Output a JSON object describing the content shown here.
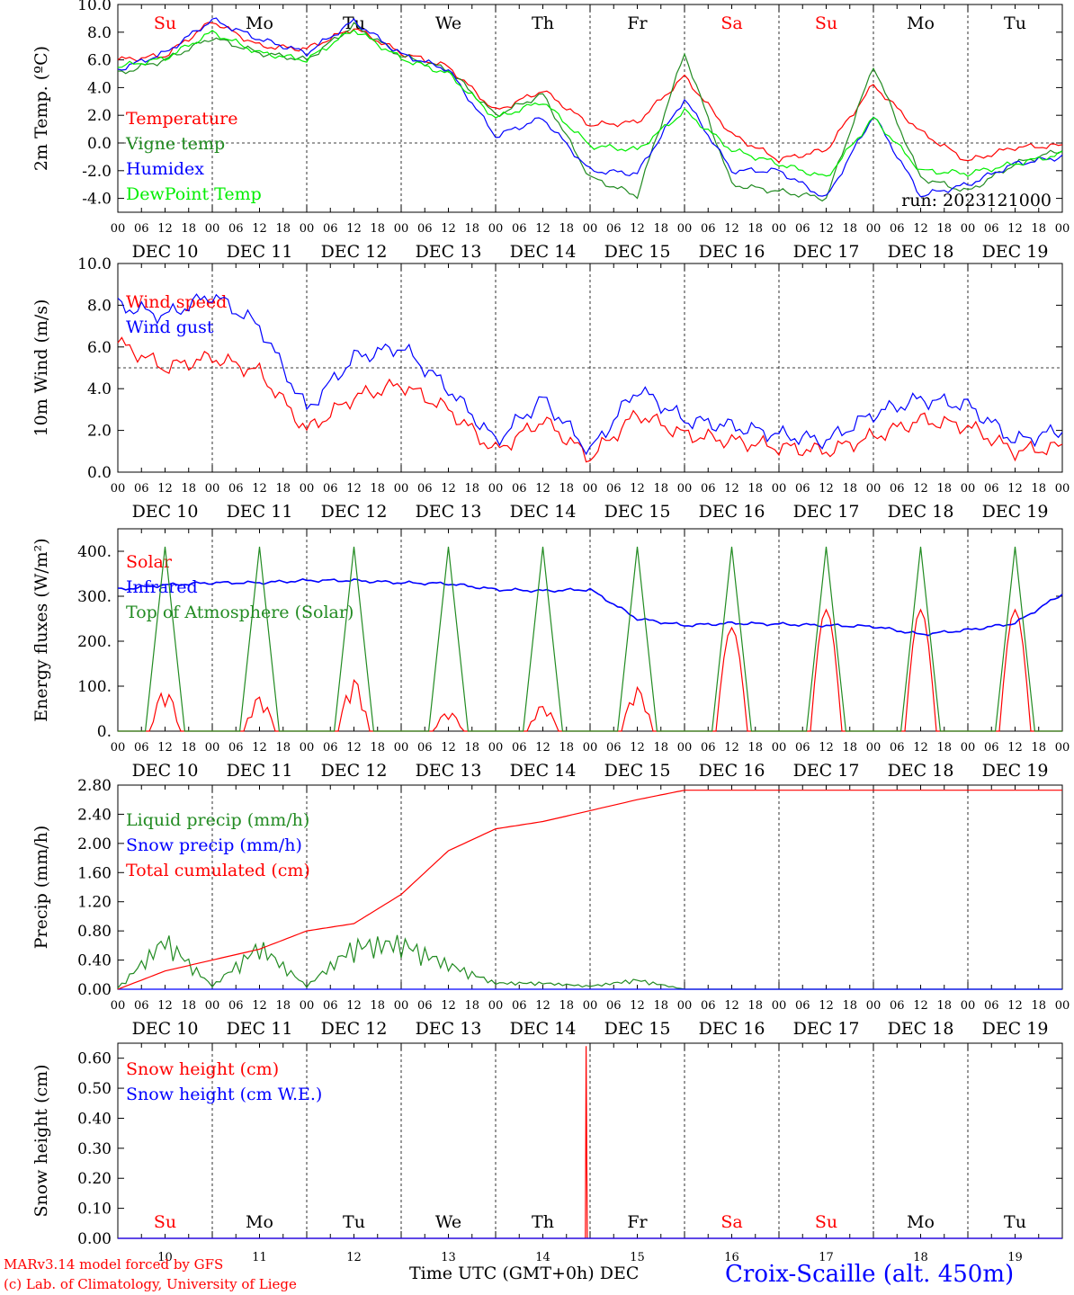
{
  "chart_data": [
    {
      "type": "line",
      "ylabel": "2m Temp. (ºC)",
      "ylim": [
        -5,
        10
      ],
      "yticks": [
        "10.0",
        "8.0",
        "6.0",
        "4.0",
        "2.0",
        "0.0",
        "-2.0",
        "-4.0"
      ],
      "ref_line": 0,
      "x_hours": [
        0,
        12,
        24,
        36,
        48,
        60,
        72,
        84,
        96,
        108,
        120,
        132,
        144,
        156,
        168,
        180,
        192,
        204,
        216,
        228,
        240
      ],
      "series": [
        {
          "name": "Temperature",
          "color": "#ff0000",
          "values": [
            6.0,
            6.3,
            8.8,
            7.0,
            6.8,
            8.3,
            6.5,
            5.5,
            2.3,
            3.8,
            1.3,
            1.5,
            4.8,
            0.6,
            -1.2,
            -0.5,
            4.2,
            0.8,
            -1.3,
            -0.3,
            -0.2
          ]
        },
        {
          "name": "Vigne temp",
          "color": "#228b22",
          "values": [
            5.0,
            6.0,
            7.6,
            6.5,
            6.0,
            8.5,
            6.3,
            5.3,
            2.0,
            3.5,
            -2.5,
            -3.8,
            6.5,
            -3.0,
            -3.5,
            -4.0,
            5.6,
            -2.5,
            -3.5,
            -1.5,
            -0.5
          ]
        },
        {
          "name": "Humidex",
          "color": "#0000ff",
          "values": [
            5.3,
            6.5,
            8.9,
            7.5,
            6.5,
            8.8,
            6.4,
            5.3,
            0.5,
            1.8,
            -2.0,
            -2.2,
            3.2,
            -2.0,
            -2.0,
            -4.0,
            2.0,
            -3.8,
            -3.0,
            -1.5,
            -1.0
          ]
        },
        {
          "name": "DewPoint Temp",
          "color": "#00ee00",
          "values": [
            5.5,
            6.1,
            8.0,
            6.5,
            6.0,
            8.2,
            6.1,
            5.0,
            1.8,
            3.0,
            -0.2,
            -0.5,
            2.3,
            -0.5,
            -1.5,
            -2.5,
            1.8,
            -2.0,
            -2.2,
            -1.5,
            -0.8
          ]
        }
      ],
      "run_label": "run: 2023121000"
    },
    {
      "type": "line",
      "ylabel": "10m Wind (m/s)",
      "ylim": [
        0,
        10
      ],
      "yticks": [
        "10.0",
        "8.0",
        "6.0",
        "4.0",
        "2.0",
        "0.0"
      ],
      "ref_line": 5,
      "x_hours": [
        0,
        12,
        24,
        36,
        48,
        60,
        72,
        84,
        96,
        108,
        120,
        132,
        144,
        156,
        168,
        180,
        192,
        204,
        216,
        228,
        240
      ],
      "series": [
        {
          "name": "Wind speed",
          "color": "#ff0000",
          "values": [
            6.2,
            5.0,
            5.5,
            4.8,
            2.0,
            3.6,
            4.2,
            3.0,
            1.0,
            2.5,
            0.7,
            2.8,
            1.8,
            1.5,
            1.2,
            1.0,
            1.7,
            2.5,
            2.2,
            1.0,
            1.2
          ]
        },
        {
          "name": "Wind gust",
          "color": "#0000ff",
          "values": [
            8.0,
            7.5,
            8.5,
            7.0,
            3.0,
            5.5,
            6.0,
            4.0,
            1.5,
            3.5,
            1.0,
            4.0,
            2.5,
            2.2,
            1.8,
            1.5,
            2.8,
            3.5,
            3.2,
            1.5,
            2.0
          ]
        }
      ]
    },
    {
      "type": "line",
      "ylabel": "Energy fluxes (W/m²)",
      "ylim": [
        0,
        450
      ],
      "yticks": [
        "400.",
        "300.",
        "200.",
        "100.",
        "0."
      ],
      "x_hours": [
        0,
        12,
        24,
        36,
        48,
        60,
        72,
        84,
        96,
        108,
        120,
        132,
        144,
        156,
        168,
        180,
        192,
        204,
        216,
        228,
        240
      ],
      "series": [
        {
          "name": "Solar",
          "color": "#ff0000",
          "daily_peaks": [
            95,
            80,
            120,
            45,
            60,
            100,
            230,
            270,
            270,
            270
          ]
        },
        {
          "name": "Infrared",
          "color": "#0000ff",
          "values": [
            315,
            325,
            330,
            330,
            335,
            335,
            330,
            328,
            315,
            312,
            315,
            250,
            235,
            240,
            238,
            235,
            233,
            215,
            225,
            240,
            305
          ]
        },
        {
          "name": "Top of Atmosphere (Solar)",
          "color": "#228b22",
          "daily_peak": 410
        }
      ]
    },
    {
      "type": "line",
      "ylabel": "Precip (mm/h)",
      "ylim": [
        0,
        2.8
      ],
      "yticks": [
        "2.80",
        "2.40",
        "2.00",
        "1.60",
        "1.20",
        "0.80",
        "0.40",
        "0.00"
      ],
      "x_hours": [
        0,
        12,
        24,
        36,
        48,
        60,
        72,
        84,
        96,
        108,
        120,
        132,
        144,
        156,
        168,
        180,
        192,
        204,
        216,
        228,
        240
      ],
      "series": [
        {
          "name": "Liquid precip (mm/h)",
          "color": "#228b22",
          "values": [
            0.02,
            0.8,
            0.05,
            0.7,
            0.05,
            0.7,
            0.75,
            0.4,
            0.1,
            0.1,
            0.05,
            0.15,
            0.0,
            0.0,
            0.0,
            0.0,
            0.0,
            0.0,
            0.0,
            0.0,
            0.0
          ]
        },
        {
          "name": "Snow precip (mm/h)",
          "color": "#0000ff",
          "values": [
            0,
            0,
            0,
            0,
            0,
            0,
            0,
            0,
            0,
            0,
            0,
            0,
            0,
            0,
            0,
            0,
            0,
            0,
            0,
            0,
            0
          ]
        },
        {
          "name": "Total cumulated (cm)",
          "color": "#ff0000",
          "values": [
            0.0,
            0.25,
            0.4,
            0.55,
            0.8,
            0.9,
            1.3,
            1.9,
            2.2,
            2.3,
            2.45,
            2.6,
            2.73,
            2.73,
            2.73,
            2.73,
            2.73,
            2.73,
            2.73,
            2.73,
            2.73
          ]
        }
      ]
    },
    {
      "type": "line",
      "ylabel": "Snow height (cm)",
      "ylim": [
        0,
        0.65
      ],
      "yticks": [
        "0.60",
        "0.50",
        "0.40",
        "0.30",
        "0.20",
        "0.10",
        "0.00"
      ],
      "series": [
        {
          "name": "Snow height (cm)",
          "color": "#ff0000",
          "spike_hour": 119,
          "spike_value": 0.64
        },
        {
          "name": "Snow height (cm W.E.)",
          "color": "#0000ff",
          "values": [
            0
          ]
        }
      ]
    }
  ],
  "x_axis": {
    "hour_ticks": [
      "00",
      "06",
      "12",
      "18"
    ],
    "final_tick": "00",
    "dates": [
      "DEC 10",
      "DEC 11",
      "DEC 12",
      "DEC 13",
      "DEC 14",
      "DEC 15",
      "DEC 16",
      "DEC 17",
      "DEC 18",
      "DEC 19"
    ],
    "weekdays": [
      "Su",
      "Mo",
      "Tu",
      "We",
      "Th",
      "Fr",
      "Sa",
      "Su",
      "Mo",
      "Tu"
    ],
    "weekday_colors": [
      "#ff0000",
      "#000000",
      "#000000",
      "#000000",
      "#000000",
      "#000000",
      "#ff0000",
      "#ff0000",
      "#000000",
      "#000000"
    ],
    "day_numbers": [
      "10",
      "11",
      "12",
      "13",
      "14",
      "15",
      "16",
      "17",
      "18",
      "19"
    ]
  },
  "footer": {
    "credit_line1": "MARv3.14 model forced by GFS",
    "credit_line2": "(c) Lab. of Climatology, University of Liege",
    "xaxis_title": "Time UTC (GMT+0h) DEC",
    "station": "Croix-Scaille (alt. 450m)"
  }
}
